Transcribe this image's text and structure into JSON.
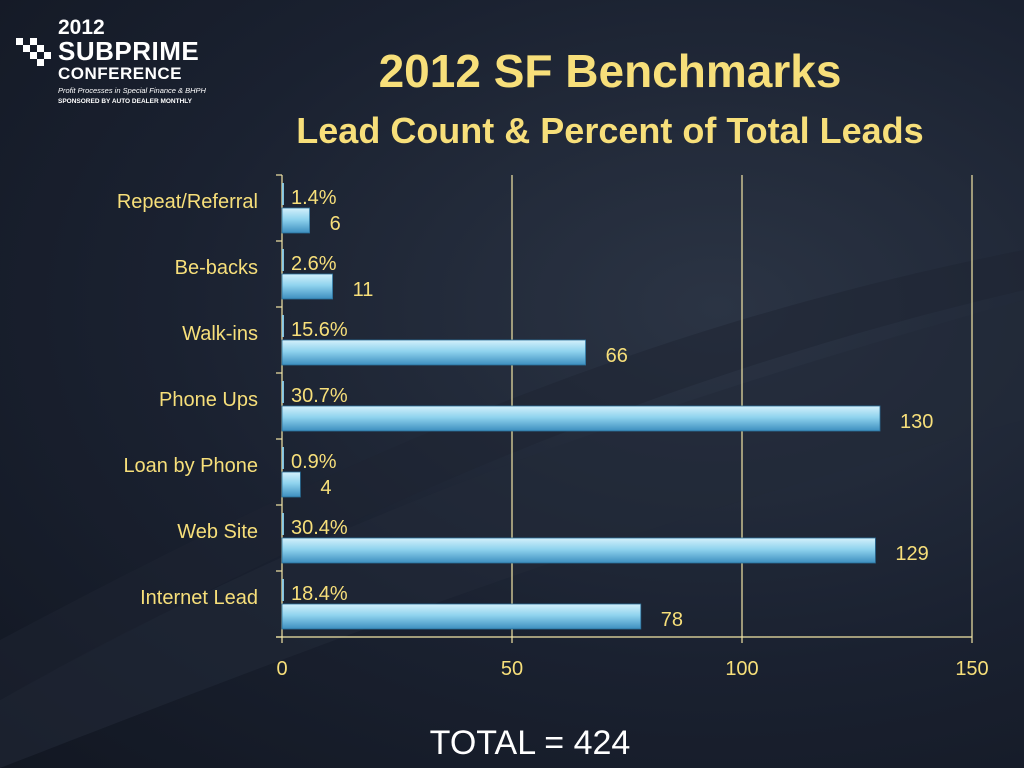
{
  "logo": {
    "year": "2012",
    "name_line1": "SUBPRIME",
    "name_line2": "CONFERENCE",
    "tagline": "Profit Processes in Special Finance & BHPH",
    "sponsor": "SPONSORED BY AUTO DEALER MONTHLY"
  },
  "slide": {
    "total": "TOTAL = 424"
  },
  "chart_data": {
    "type": "bar",
    "orientation": "horizontal",
    "title": "2012 SF Benchmarks",
    "subtitle": "Lead Count & Percent of Total Leads",
    "categories": [
      "Repeat/Referral",
      "Be-backs",
      "Walk-ins",
      "Phone Ups",
      "Loan by Phone",
      "Web Site",
      "Internet Lead"
    ],
    "series": [
      {
        "values": [
          6,
          11,
          66,
          130,
          4,
          129,
          78
        ],
        "labels": [
          "6",
          "11",
          "66",
          "130",
          "4",
          "129",
          "78"
        ],
        "color": "#8fd3ee"
      },
      {
        "values": [
          1.4,
          2.6,
          15.6,
          30.7,
          0.9,
          30.4,
          18.4
        ],
        "labels": [
          "1.4%",
          "2.6%",
          "15.6%",
          "30.7%",
          "0.9%",
          "30.4%",
          "18.4%"
        ],
        "color": "#8fd3ee"
      }
    ],
    "xlim": [
      0,
      150
    ],
    "xticks": [
      0,
      50,
      100,
      150
    ],
    "xtick_labels": [
      "0",
      "50",
      "100",
      "150"
    ],
    "grid": true,
    "gridline_color": "#f3e6a6",
    "label_color": "#f7df7a"
  }
}
